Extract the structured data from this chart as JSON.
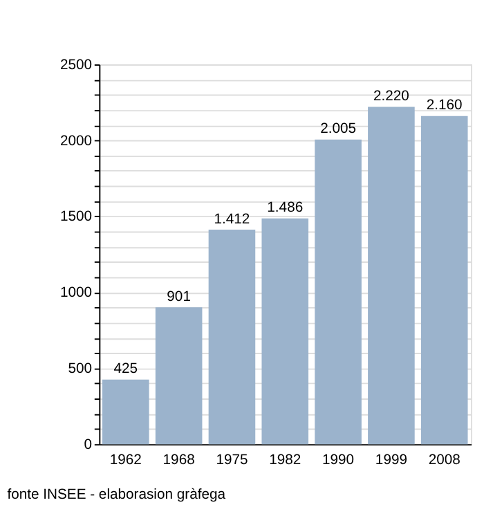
{
  "chart_data": {
    "type": "bar",
    "categories": [
      "1962",
      "1968",
      "1975",
      "1982",
      "1990",
      "1999",
      "2008"
    ],
    "values": [
      425,
      901,
      1412,
      1486,
      2005,
      2220,
      2160
    ],
    "value_labels": [
      "425",
      "901",
      "1.412",
      "1.486",
      "2.005",
      "2.220",
      "2.160"
    ],
    "color": "#9bb3cc",
    "ylim": [
      0,
      2500
    ],
    "yticks": [
      0,
      {
        "value": 100,
        "label": null
      },
      {
        "value": 200,
        "label": null
      },
      {
        "value": 300,
        "label": null
      },
      {
        "value": 400,
        "label": null
      },
      500,
      {
        "value": 600,
        "label": null
      },
      {
        "value": 700,
        "label": null
      },
      {
        "value": 800,
        "label": null
      },
      {
        "value": 900,
        "label": null
      },
      1000,
      {
        "value": 1100,
        "label": null
      },
      {
        "value": 1200,
        "label": null
      },
      {
        "value": 1300,
        "label": null
      },
      {
        "value": 1400,
        "label": null
      },
      1500,
      {
        "value": 1600,
        "label": null
      },
      {
        "value": 1700,
        "label": null
      },
      {
        "value": 1800,
        "label": null
      },
      {
        "value": 1900,
        "label": null
      },
      2000,
      {
        "value": 2100,
        "label": null
      },
      {
        "value": 2200,
        "label": null
      },
      {
        "value": 2300,
        "label": null
      },
      {
        "value": 2400,
        "label": null
      },
      2500
    ],
    "grid": "y",
    "annotations": [
      "fonte INSEE - elaborasion gràfega"
    ]
  }
}
